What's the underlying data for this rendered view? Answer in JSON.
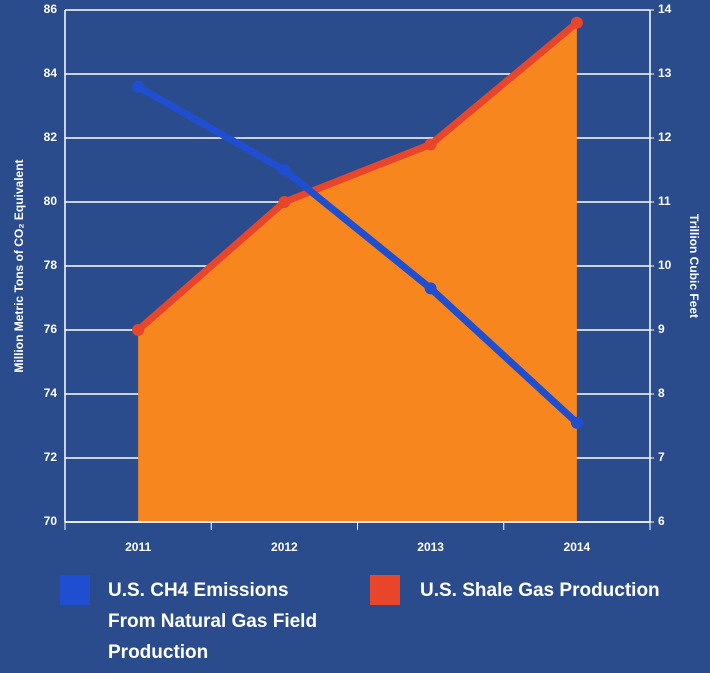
{
  "chart_data": {
    "type": "line",
    "categories": [
      "2011",
      "2012",
      "2013",
      "2014"
    ],
    "series": [
      {
        "name": "U.S. CH4 Emissions From Natural Gas Field Production",
        "color": "#1f4fd0",
        "values": [
          83.6,
          81.0,
          77.3,
          73.1
        ]
      },
      {
        "name": "U.S. Shale Gas Production",
        "color": "#e8452a",
        "fill": "#f7861f",
        "area": true,
        "axis": "y2",
        "values": [
          9.0,
          11.0,
          11.9,
          13.8
        ]
      }
    ],
    "ylabel": "Million Metric Tons of CO₂ Equivalent",
    "y2label": "Trillion Cubic Feet",
    "ylim": [
      70,
      86
    ],
    "yticks": [
      70,
      72,
      74,
      76,
      78,
      80,
      82,
      84,
      86
    ],
    "y2lim": [
      6,
      14
    ],
    "y2ticks": [
      6,
      7,
      8,
      9,
      10,
      11,
      12,
      13,
      14
    ],
    "grid": true
  }
}
